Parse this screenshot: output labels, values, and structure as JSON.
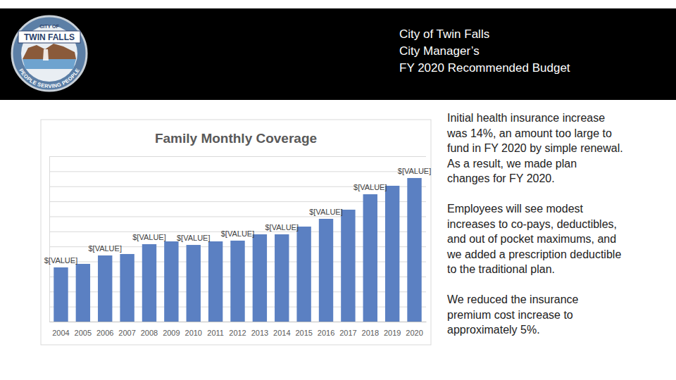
{
  "header": {
    "lines": [
      "City of Twin Falls",
      "City Manager’s",
      "FY 2020 Recommended Budget"
    ]
  },
  "logo": {
    "top": "CITY OF",
    "name": "TWIN FALLS",
    "motto": "PEOPLE SERVING PEOPLE"
  },
  "notes": [
    [
      "Initial health insurance increase",
      "was 14%, an amount too large to",
      "fund in FY 2020 by simple renewal.",
      "As a result, we made plan",
      "changes for FY 2020."
    ],
    [
      "Employees will see modest",
      "increases to co-pays, deductibles,",
      "and out of pocket maximums, and",
      "we added a prescription deductible",
      "to the traditional plan."
    ],
    [
      "We reduced the insurance",
      "premium cost increase to",
      "approximately 5%."
    ]
  ],
  "chart_data": {
    "type": "bar",
    "title": "Family Monthly Coverage",
    "categories": [
      "2004",
      "2005",
      "2006",
      "2007",
      "2008",
      "2009",
      "2010",
      "2011",
      "2012",
      "2013",
      "2014",
      "2015",
      "2016",
      "2017",
      "2018",
      "2019",
      "2020"
    ],
    "values": [
      721,
      768,
      880,
      899,
      1030,
      1067,
      1020,
      1067,
      1077,
      1161,
      1161,
      1264,
      1367,
      1489,
      1694,
      1807,
      1910
    ],
    "value_labels": [
      "$[VALUE]",
      null,
      "$[VALUE]",
      null,
      "$[VALUE]",
      null,
      "$[VALUE]",
      null,
      "$[VALUE]",
      null,
      "$[VALUE]",
      null,
      "$[VALUE]",
      null,
      "$[VALUE]",
      null,
      "$[VALUE]"
    ],
    "data_labels": true,
    "color": "#5b80c2",
    "ylim": [
      0,
      2200
    ],
    "yticks": [
      0,
      200,
      400,
      600,
      800,
      1000,
      1200,
      1400,
      1600,
      1800,
      2000,
      2200
    ],
    "grid": true,
    "tick_labels": "x"
  }
}
